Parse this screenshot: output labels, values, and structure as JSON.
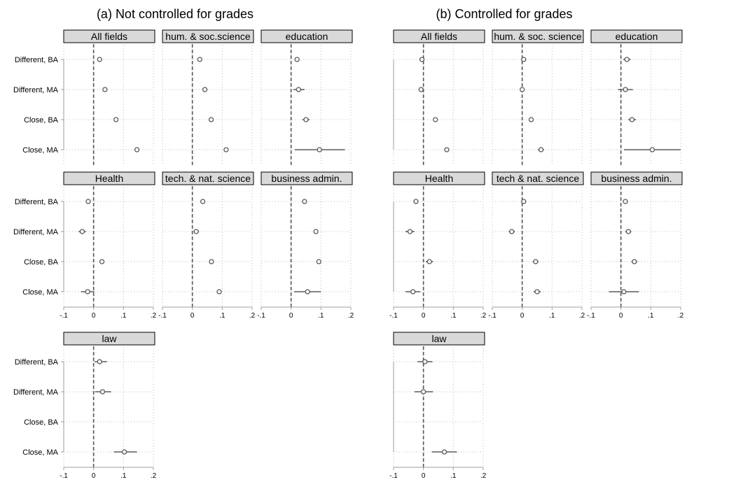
{
  "chart_data": {
    "type": "scatter",
    "panels": [
      {
        "title": "(a) Not controlled for grades",
        "facets": [
          {
            "name": "All fields",
            "points": [
              {
                "category": "Different, BA",
                "est": 0.02,
                "lo": 0.015,
                "hi": 0.025
              },
              {
                "category": "Different, MA",
                "est": 0.038,
                "lo": 0.033,
                "hi": 0.043
              },
              {
                "category": "Close, BA",
                "est": 0.075,
                "lo": 0.07,
                "hi": 0.08
              },
              {
                "category": "Close, MA",
                "est": 0.145,
                "lo": 0.14,
                "hi": 0.15
              }
            ]
          },
          {
            "name": "hum. & soc.science",
            "points": [
              {
                "category": "Different, BA",
                "est": 0.025,
                "lo": 0.02,
                "hi": 0.03
              },
              {
                "category": "Different, MA",
                "est": 0.042,
                "lo": 0.037,
                "hi": 0.047
              },
              {
                "category": "Close, BA",
                "est": 0.063,
                "lo": 0.058,
                "hi": 0.068
              },
              {
                "category": "Close, MA",
                "est": 0.113,
                "lo": 0.106,
                "hi": 0.12
              }
            ]
          },
          {
            "name": "education",
            "points": [
              {
                "category": "Different, BA",
                "est": 0.02,
                "lo": 0.012,
                "hi": 0.028
              },
              {
                "category": "Different, MA",
                "est": 0.025,
                "lo": 0.008,
                "hi": 0.045
              },
              {
                "category": "Close, BA",
                "est": 0.05,
                "lo": 0.038,
                "hi": 0.062
              },
              {
                "category": "Close, MA",
                "est": 0.095,
                "lo": 0.012,
                "hi": 0.18
              }
            ]
          },
          {
            "name": "Health",
            "points": [
              {
                "category": "Different, BA",
                "est": -0.018,
                "lo": -0.026,
                "hi": -0.01
              },
              {
                "category": "Different, MA",
                "est": -0.038,
                "lo": -0.05,
                "hi": -0.026
              },
              {
                "category": "Close, BA",
                "est": 0.028,
                "lo": 0.02,
                "hi": 0.036
              },
              {
                "category": "Close, MA",
                "est": -0.02,
                "lo": -0.042,
                "hi": 0.002
              }
            ]
          },
          {
            "name": "tech. & nat. science",
            "points": [
              {
                "category": "Different, BA",
                "est": 0.035,
                "lo": 0.029,
                "hi": 0.041
              },
              {
                "category": "Different, MA",
                "est": 0.013,
                "lo": 0.004,
                "hi": 0.022
              },
              {
                "category": "Close, BA",
                "est": 0.064,
                "lo": 0.058,
                "hi": 0.07
              },
              {
                "category": "Close, MA",
                "est": 0.09,
                "lo": 0.082,
                "hi": 0.098
              }
            ]
          },
          {
            "name": "business admin.",
            "points": [
              {
                "category": "Different, BA",
                "est": 0.045,
                "lo": 0.039,
                "hi": 0.051
              },
              {
                "category": "Different, MA",
                "est": 0.083,
                "lo": 0.077,
                "hi": 0.089
              },
              {
                "category": "Close, BA",
                "est": 0.093,
                "lo": 0.087,
                "hi": 0.099
              },
              {
                "category": "Close, MA",
                "est": 0.055,
                "lo": 0.01,
                "hi": 0.1
              }
            ]
          },
          {
            "name": "law",
            "points": [
              {
                "category": "Different, BA",
                "est": 0.02,
                "lo": 0.003,
                "hi": 0.045
              },
              {
                "category": "Different, MA",
                "est": 0.03,
                "lo": 0.005,
                "hi": 0.058
              },
              {
                "category": "Close, MA",
                "est": 0.103,
                "lo": 0.068,
                "hi": 0.145
              }
            ]
          }
        ]
      },
      {
        "title": "(b) Controlled for grades",
        "facets": [
          {
            "name": "All fields",
            "points": [
              {
                "category": "Different, BA",
                "est": -0.005,
                "lo": -0.01,
                "hi": 0.0
              },
              {
                "category": "Different, MA",
                "est": -0.008,
                "lo": -0.013,
                "hi": -0.003
              },
              {
                "category": "Close, BA",
                "est": 0.04,
                "lo": 0.035,
                "hi": 0.045
              },
              {
                "category": "Close, MA",
                "est": 0.078,
                "lo": 0.073,
                "hi": 0.083
              }
            ]
          },
          {
            "name": "hum. & soc. science",
            "points": [
              {
                "category": "Different, BA",
                "est": 0.005,
                "lo": 0.0,
                "hi": 0.01
              },
              {
                "category": "Different, MA",
                "est": 0.0,
                "lo": -0.007,
                "hi": 0.007
              },
              {
                "category": "Close, BA",
                "est": 0.03,
                "lo": 0.024,
                "hi": 0.036
              },
              {
                "category": "Close, MA",
                "est": 0.063,
                "lo": 0.053,
                "hi": 0.073
              }
            ]
          },
          {
            "name": "education",
            "points": [
              {
                "category": "Different, BA",
                "est": 0.02,
                "lo": 0.008,
                "hi": 0.032
              },
              {
                "category": "Different, MA",
                "est": 0.015,
                "lo": -0.01,
                "hi": 0.04
              },
              {
                "category": "Close, BA",
                "est": 0.037,
                "lo": 0.025,
                "hi": 0.05
              },
              {
                "category": "Close, MA",
                "est": 0.105,
                "lo": 0.01,
                "hi": 0.2
              }
            ]
          },
          {
            "name": "Health",
            "points": [
              {
                "category": "Different, BA",
                "est": -0.025,
                "lo": -0.032,
                "hi": -0.018
              },
              {
                "category": "Different, MA",
                "est": -0.045,
                "lo": -0.06,
                "hi": -0.03
              },
              {
                "category": "Close, BA",
                "est": 0.02,
                "lo": 0.008,
                "hi": 0.032
              },
              {
                "category": "Close, MA",
                "est": -0.035,
                "lo": -0.06,
                "hi": -0.01
              }
            ]
          },
          {
            "name": "tech & nat. science",
            "points": [
              {
                "category": "Different, BA",
                "est": 0.005,
                "lo": -0.001,
                "hi": 0.011
              },
              {
                "category": "Different, MA",
                "est": -0.035,
                "lo": -0.045,
                "hi": -0.025
              },
              {
                "category": "Close, BA",
                "est": 0.045,
                "lo": 0.035,
                "hi": 0.055
              },
              {
                "category": "Close, MA",
                "est": 0.05,
                "lo": 0.038,
                "hi": 0.062
              }
            ]
          },
          {
            "name": "business admin.",
            "points": [
              {
                "category": "Different, BA",
                "est": 0.015,
                "lo": 0.009,
                "hi": 0.021
              },
              {
                "category": "Different, MA",
                "est": 0.025,
                "lo": 0.015,
                "hi": 0.035
              },
              {
                "category": "Close, BA",
                "est": 0.045,
                "lo": 0.035,
                "hi": 0.055
              },
              {
                "category": "Close, MA",
                "est": 0.01,
                "lo": -0.04,
                "hi": 0.06
              }
            ]
          },
          {
            "name": "law",
            "points": [
              {
                "category": "Different, BA",
                "est": 0.005,
                "lo": -0.02,
                "hi": 0.03
              },
              {
                "category": "Different, MA",
                "est": 0.0,
                "lo": -0.03,
                "hi": 0.032
              },
              {
                "category": "Close, MA",
                "est": 0.07,
                "lo": 0.028,
                "hi": 0.112
              }
            ]
          }
        ]
      }
    ],
    "categories": [
      "Different, BA",
      "Different, MA",
      "Close, BA",
      "Close, MA"
    ],
    "xlim": [
      -0.1,
      0.2
    ],
    "xticks": [
      -0.1,
      0,
      0.1,
      0.2
    ],
    "xtick_labels": [
      "-.1",
      "0",
      ".1",
      ".2"
    ],
    "reference_line": 0,
    "grid": true
  }
}
